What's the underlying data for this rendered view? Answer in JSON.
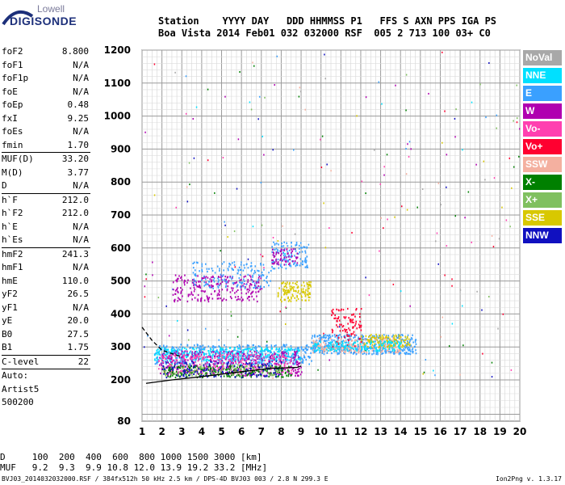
{
  "logo": {
    "top": "Lowell",
    "bottom": "DIGISONDE"
  },
  "header": {
    "line1": "Station    YYYY DAY   DDD HHMMSS P1   FFS S AXN PPS IGA PS",
    "line2": "Boa Vista 2014 Feb01 032 032000 RSF  005 2 713 100 03+ C0"
  },
  "params": [
    {
      "k": "foF2",
      "v": "8.800"
    },
    {
      "k": "foF1",
      "v": "N/A"
    },
    {
      "k": "foF1p",
      "v": "N/A"
    },
    {
      "k": "foE",
      "v": "N/A"
    },
    {
      "k": "foEp",
      "v": "0.48"
    },
    {
      "k": "fxI",
      "v": "9.25"
    },
    {
      "k": "foEs",
      "v": "N/A"
    },
    {
      "k": "fmin",
      "v": "1.70"
    },
    {
      "k": "MUF(D)",
      "v": "33.20"
    },
    {
      "k": "M(D)",
      "v": "3.77"
    },
    {
      "k": "D",
      "v": "N/A"
    },
    {
      "k": "h`F",
      "v": "212.0"
    },
    {
      "k": "h`F2",
      "v": "212.0"
    },
    {
      "k": "h`E",
      "v": "N/A"
    },
    {
      "k": "h`Es",
      "v": "N/A"
    },
    {
      "k": "hmF2",
      "v": "241.3"
    },
    {
      "k": "hmF1",
      "v": "N/A"
    },
    {
      "k": "hmE",
      "v": "110.0"
    },
    {
      "k": "yF2",
      "v": "26.5"
    },
    {
      "k": "yF1",
      "v": "N/A"
    },
    {
      "k": "yE",
      "v": "20.0"
    },
    {
      "k": "B0",
      "v": "27.5"
    },
    {
      "k": "B1",
      "v": "1.75"
    },
    {
      "k": "C-level",
      "v": "22"
    },
    {
      "k": "Auto:",
      "v": ""
    },
    {
      "k": "Artist5",
      "v": ""
    },
    {
      "k": "500200",
      "v": ""
    }
  ],
  "legend": [
    {
      "label": "NoVal",
      "color": "#a8a8a8"
    },
    {
      "label": "NNE",
      "color": "#00e0ff"
    },
    {
      "label": "E",
      "color": "#3aa0ff"
    },
    {
      "label": "W",
      "color": "#b000b0"
    },
    {
      "label": "Vo-",
      "color": "#ff40b0"
    },
    {
      "label": "Vo+",
      "color": "#ff0030"
    },
    {
      "label": "SSW",
      "color": "#f4b0a0"
    },
    {
      "label": "X-",
      "color": "#008000"
    },
    {
      "label": "X+",
      "color": "#80c060"
    },
    {
      "label": "SSE",
      "color": "#d8c800"
    },
    {
      "label": "NNW",
      "color": "#1010c0"
    }
  ],
  "footer": {
    "d_row": "D     100  200  400  600  800 1000 1500 3000 [km]",
    "muf_row": "MUF   9.2  9.3  9.9 10.8 12.0 13.9 19.2 33.2 [MHz]",
    "info": "BVJ03_2014032032000.RSF / 384fx512h 50 kHz 2.5 km / DPS-4D BVJ03 003 / 2.8 N 299.3 E",
    "version": "Ion2Png v. 1.3.17"
  },
  "chart_data": {
    "type": "scatter",
    "xlim": [
      1,
      20
    ],
    "ylim": [
      80,
      1200
    ],
    "x_ticks": [
      1,
      2,
      3,
      4,
      5,
      6,
      7,
      8,
      9,
      10,
      11,
      12,
      13,
      14,
      15,
      16,
      17,
      18,
      19,
      20
    ],
    "y_ticks": [
      80,
      200,
      300,
      400,
      500,
      600,
      700,
      800,
      900,
      1000,
      1100,
      1200
    ],
    "grid": true,
    "legend_position": "right",
    "traces": [
      {
        "name": "hmF2 profile",
        "style": "solid",
        "points": [
          [
            1.2,
            190
          ],
          [
            2.5,
            200
          ],
          [
            4,
            210
          ],
          [
            6,
            225
          ],
          [
            7.5,
            235
          ],
          [
            8.8,
            238
          ],
          [
            9,
            242
          ]
        ]
      },
      {
        "name": "profile upper",
        "style": "dashed",
        "points": [
          [
            1,
            360
          ],
          [
            1.5,
            320
          ],
          [
            2,
            290
          ],
          [
            3,
            270
          ]
        ]
      }
    ],
    "clusters": [
      {
        "color": "#3aa0ff",
        "x": [
          1.6,
          9.5
        ],
        "y": [
          250,
          310
        ],
        "n": 500
      },
      {
        "color": "#00e0ff",
        "x": [
          1.6,
          9
        ],
        "y": [
          260,
          300
        ],
        "n": 300
      },
      {
        "color": "#b000b0",
        "x": [
          1.8,
          9
        ],
        "y": [
          215,
          290
        ],
        "n": 350
      },
      {
        "color": "#ff40b0",
        "x": [
          1.8,
          8.5
        ],
        "y": [
          220,
          280
        ],
        "n": 250
      },
      {
        "color": "#008000",
        "x": [
          2,
          8.5
        ],
        "y": [
          210,
          245
        ],
        "n": 220
      },
      {
        "color": "#80c060",
        "x": [
          2,
          8
        ],
        "y": [
          215,
          250
        ],
        "n": 120
      },
      {
        "color": "#1010c0",
        "x": [
          2,
          8
        ],
        "y": [
          210,
          260
        ],
        "n": 150
      },
      {
        "color": "#b000b0",
        "x": [
          2.5,
          7
        ],
        "y": [
          440,
          520
        ],
        "n": 250
      },
      {
        "color": "#3aa0ff",
        "x": [
          3.5,
          7.5
        ],
        "y": [
          480,
          560
        ],
        "n": 160
      },
      {
        "color": "#3aa0ff",
        "x": [
          7.5,
          9.3
        ],
        "y": [
          540,
          620
        ],
        "n": 120
      },
      {
        "color": "#b000b0",
        "x": [
          7.5,
          8.8
        ],
        "y": [
          550,
          600
        ],
        "n": 60
      },
      {
        "color": "#d8c800",
        "x": [
          7.8,
          9.5
        ],
        "y": [
          440,
          500
        ],
        "n": 120
      },
      {
        "color": "#3aa0ff",
        "x": [
          9.5,
          14.8
        ],
        "y": [
          280,
          340
        ],
        "n": 450
      },
      {
        "color": "#f4b0a0",
        "x": [
          9.5,
          14
        ],
        "y": [
          285,
          330
        ],
        "n": 200
      },
      {
        "color": "#d8c800",
        "x": [
          12,
          14.5
        ],
        "y": [
          300,
          340
        ],
        "n": 120
      },
      {
        "color": "#ff0030",
        "x": [
          10.5,
          12
        ],
        "y": [
          300,
          420
        ],
        "n": 100
      },
      {
        "color": "#00e0ff",
        "x": [
          9.5,
          14
        ],
        "y": [
          290,
          320
        ],
        "n": 150
      }
    ],
    "scatter_noise": {
      "x": [
        1,
        20
      ],
      "y": [
        80,
        1200
      ],
      "n": 220
    }
  }
}
